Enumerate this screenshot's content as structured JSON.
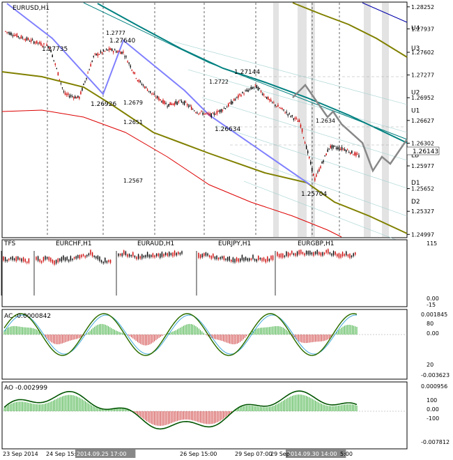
{
  "window": {
    "symbol_label": "EURUSD,H1",
    "price_scale": [
      "1.28252",
      "1.27937",
      "1.27602",
      "1.27277",
      "1.26952",
      "1.26627",
      "1.26302",
      "1.25977",
      "1.25652",
      "1.25327",
      "1.24997"
    ],
    "current_price": "1.26143"
  },
  "colors": {
    "bull_candle": "#cc0000",
    "bear_candle": "#000000",
    "grey_band": "#e3e3e3",
    "olive": "#808000",
    "teal": "#008080",
    "red_line": "#dd0000",
    "navy": "#0000aa",
    "zigzag": "#8080ff",
    "projection": "#888888",
    "ao_pos": "#cc3333",
    "ao_neg": "#33aa33"
  },
  "levels": {
    "labels": [
      "U4",
      "U3",
      "U2",
      "U1",
      "LB",
      "D1",
      "D2"
    ],
    "prices": [
      1.2796,
      1.2767,
      1.2704,
      1.2678,
      1.2614,
      1.2575,
      1.2548
    ]
  },
  "zigzag_labels": [
    "1.27735",
    "1.27640",
    "1.2777",
    "1.26926",
    "1.2679",
    "1.2651",
    "1.2567",
    "1.2722",
    "1.27144",
    "1.26634",
    "1.2634",
    "1.25704"
  ],
  "subpanel_corr": {
    "tag": "TFS",
    "pairs": [
      "EURCHF,H1",
      "EURAUD,H1",
      "EURJPY,H1",
      "EURGBP,H1"
    ],
    "scale": [
      "115",
      "0.00",
      "-15"
    ]
  },
  "subpanel_ac": {
    "label": "AC -0.0000842",
    "scale": [
      "0.001845",
      "80",
      "0.00",
      "20",
      "-0.003623"
    ]
  },
  "subpanel_ao": {
    "label": "AO -0.002999",
    "scale": [
      "0.000956",
      "100",
      "0.00",
      "-100",
      "-0.007812"
    ]
  },
  "time_axis": [
    "23 Sep 2014",
    "24 Sep 15:00",
    "2014.09.25 17:00",
    "26 Sep 15:00",
    "29 Sep 07:00",
    "2014.09.30 14:00",
    "29 Sep",
    "5:00"
  ],
  "chart_data": {
    "type": "line",
    "title": "EURUSD,H1",
    "ylim": [
      1.2497,
      1.283
    ],
    "x": [
      0,
      5,
      10,
      15,
      20,
      25,
      30,
      35,
      40,
      45,
      50,
      55,
      60,
      65,
      70,
      75,
      80,
      85,
      90,
      95,
      100,
      105,
      110,
      115,
      120
    ],
    "series": [
      {
        "values": [
          1.279,
          1.2782,
          1.2775,
          1.2768,
          1.27,
          1.2695,
          1.2755,
          1.2764,
          1.276,
          1.272,
          1.27,
          1.2685,
          1.269,
          1.2675,
          1.267,
          1.2682,
          1.27,
          1.2712,
          1.269,
          1.2675,
          1.266,
          1.2578,
          1.2625,
          1.2622,
          1.2612
        ]
      }
    ]
  }
}
